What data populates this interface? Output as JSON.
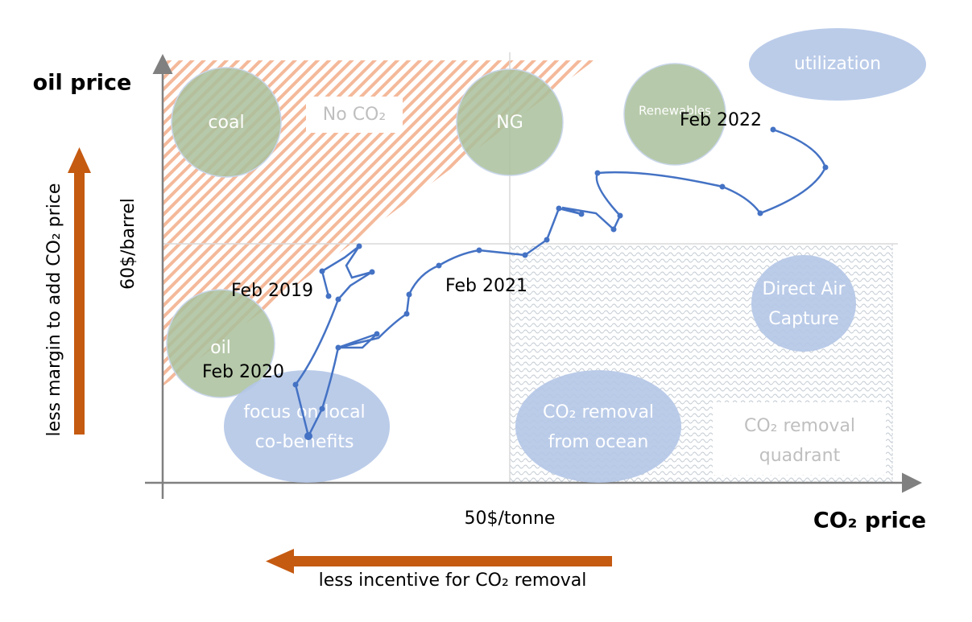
{
  "axes": {
    "y_label": "oil price",
    "x_label": "CO₂ price",
    "y_mark": "60$/barrel",
    "x_mark": "50$/tonne"
  },
  "arrows": {
    "vertical": "less margin to add CO₂ price",
    "horizontal": "less incentive for CO₂ removal"
  },
  "regions": {
    "no_co2": "No CO₂",
    "removal_quadrant": [
      "CO₂ removal",
      "quadrant"
    ]
  },
  "bubbles": {
    "coal": "coal",
    "ng": "NG",
    "renewables": "Renewables",
    "utilization": "utilization",
    "oil": "oil",
    "local": [
      "focus on local",
      "co-benefits"
    ],
    "ocean": [
      "CO₂ removal",
      "from ocean"
    ],
    "dac": [
      "Direct Air",
      "Capture"
    ]
  },
  "dates": [
    "Feb 2019",
    "Feb 2020",
    "Feb 2021",
    "Feb 2022"
  ]
}
